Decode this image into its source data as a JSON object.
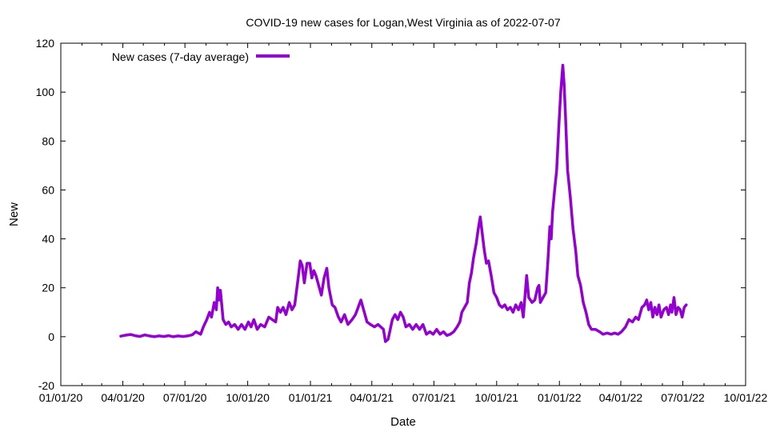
{
  "chart_data": {
    "type": "line",
    "title": "COVID-19 new cases for Logan,West Virginia as of 2022-07-07",
    "xlabel": "Date",
    "ylabel": "New",
    "x_type": "date",
    "xlim": [
      "2020-01-01",
      "2022-10-01"
    ],
    "ylim": [
      -20,
      120
    ],
    "x_ticks": [
      "2020-01-01",
      "2020-04-01",
      "2020-07-01",
      "2020-10-01",
      "2021-01-01",
      "2021-04-01",
      "2021-07-01",
      "2021-10-01",
      "2022-01-01",
      "2022-04-01",
      "2022-07-01",
      "2022-10-01"
    ],
    "x_tick_labels": [
      "01/01/20",
      "04/01/20",
      "07/01/20",
      "10/01/20",
      "01/01/21",
      "04/01/21",
      "07/01/21",
      "10/01/21",
      "01/01/22",
      "04/01/22",
      "07/01/22",
      "10/01/22"
    ],
    "y_ticks": [
      -20,
      0,
      20,
      40,
      60,
      80,
      100,
      120
    ],
    "grid": false,
    "legend_position": "top-left",
    "series": [
      {
        "name": "New cases (7-day average)",
        "color": "#9400d3",
        "points": [
          [
            "2020-03-29",
            0.2
          ],
          [
            "2020-04-05",
            0.6
          ],
          [
            "2020-04-12",
            0.9
          ],
          [
            "2020-04-19",
            0.4
          ],
          [
            "2020-04-26",
            0.1
          ],
          [
            "2020-05-03",
            0.7
          ],
          [
            "2020-05-10",
            0.3
          ],
          [
            "2020-05-17",
            0.0
          ],
          [
            "2020-05-24",
            0.3
          ],
          [
            "2020-05-31",
            0.1
          ],
          [
            "2020-06-07",
            0.4
          ],
          [
            "2020-06-14",
            0.0
          ],
          [
            "2020-06-21",
            0.3
          ],
          [
            "2020-06-28",
            0.1
          ],
          [
            "2020-07-05",
            0.3
          ],
          [
            "2020-07-12",
            0.8
          ],
          [
            "2020-07-17",
            2.0
          ],
          [
            "2020-07-24",
            1.0
          ],
          [
            "2020-07-28",
            4.0
          ],
          [
            "2020-08-02",
            7.0
          ],
          [
            "2020-08-06",
            10.0
          ],
          [
            "2020-08-09",
            8.0
          ],
          [
            "2020-08-13",
            14.0
          ],
          [
            "2020-08-16",
            11.0
          ],
          [
            "2020-08-18",
            20.0
          ],
          [
            "2020-08-20",
            15.0
          ],
          [
            "2020-08-22",
            19.0
          ],
          [
            "2020-08-26",
            7.0
          ],
          [
            "2020-08-30",
            5.0
          ],
          [
            "2020-09-03",
            6.0
          ],
          [
            "2020-09-07",
            4.0
          ],
          [
            "2020-09-12",
            5.0
          ],
          [
            "2020-09-17",
            3.0
          ],
          [
            "2020-09-22",
            5.0
          ],
          [
            "2020-09-27",
            3.0
          ],
          [
            "2020-10-02",
            6.0
          ],
          [
            "2020-10-06",
            4.0
          ],
          [
            "2020-10-10",
            7.0
          ],
          [
            "2020-10-15",
            3.0
          ],
          [
            "2020-10-20",
            5.0
          ],
          [
            "2020-10-26",
            4.0
          ],
          [
            "2020-11-01",
            8.0
          ],
          [
            "2020-11-06",
            7.0
          ],
          [
            "2020-11-11",
            6.0
          ],
          [
            "2020-11-14",
            12.0
          ],
          [
            "2020-11-18",
            10.0
          ],
          [
            "2020-11-22",
            12.0
          ],
          [
            "2020-11-26",
            9.0
          ],
          [
            "2020-12-01",
            14.0
          ],
          [
            "2020-12-05",
            11.0
          ],
          [
            "2020-12-09",
            13.0
          ],
          [
            "2020-12-14",
            24.0
          ],
          [
            "2020-12-17",
            31.0
          ],
          [
            "2020-12-20",
            29.0
          ],
          [
            "2020-12-23",
            22.0
          ],
          [
            "2020-12-27",
            30.0
          ],
          [
            "2020-12-31",
            30.0
          ],
          [
            "2021-01-03",
            24.0
          ],
          [
            "2021-01-06",
            27.0
          ],
          [
            "2021-01-09",
            25.0
          ],
          [
            "2021-01-13",
            21.0
          ],
          [
            "2021-01-17",
            17.0
          ],
          [
            "2021-01-21",
            24.0
          ],
          [
            "2021-01-25",
            28.0
          ],
          [
            "2021-01-28",
            20.0
          ],
          [
            "2021-02-02",
            13.0
          ],
          [
            "2021-02-06",
            12.0
          ],
          [
            "2021-02-11",
            8.0
          ],
          [
            "2021-02-15",
            6.0
          ],
          [
            "2021-02-20",
            9.0
          ],
          [
            "2021-02-25",
            5.0
          ],
          [
            "2021-03-03",
            7.0
          ],
          [
            "2021-03-08",
            9.0
          ],
          [
            "2021-03-12",
            12.0
          ],
          [
            "2021-03-16",
            15.0
          ],
          [
            "2021-03-20",
            11.0
          ],
          [
            "2021-03-25",
            6.0
          ],
          [
            "2021-03-30",
            5.0
          ],
          [
            "2021-04-05",
            4.0
          ],
          [
            "2021-04-10",
            5.0
          ],
          [
            "2021-04-14",
            4.0
          ],
          [
            "2021-04-18",
            3.0
          ],
          [
            "2021-04-21",
            -2.0
          ],
          [
            "2021-04-25",
            -1.0
          ],
          [
            "2021-04-28",
            3.0
          ],
          [
            "2021-05-01",
            7.0
          ],
          [
            "2021-05-05",
            9.0
          ],
          [
            "2021-05-09",
            7.0
          ],
          [
            "2021-05-13",
            10.0
          ],
          [
            "2021-05-17",
            8.0
          ],
          [
            "2021-05-21",
            4.0
          ],
          [
            "2021-05-26",
            5.0
          ],
          [
            "2021-05-31",
            3.0
          ],
          [
            "2021-06-05",
            5.0
          ],
          [
            "2021-06-10",
            3.0
          ],
          [
            "2021-06-15",
            5.0
          ],
          [
            "2021-06-20",
            1.0
          ],
          [
            "2021-06-25",
            2.0
          ],
          [
            "2021-06-30",
            1.0
          ],
          [
            "2021-07-05",
            3.0
          ],
          [
            "2021-07-10",
            1.0
          ],
          [
            "2021-07-15",
            2.0
          ],
          [
            "2021-07-20",
            0.5
          ],
          [
            "2021-07-25",
            1.0
          ],
          [
            "2021-07-30",
            2.0
          ],
          [
            "2021-08-04",
            4.0
          ],
          [
            "2021-08-08",
            6.0
          ],
          [
            "2021-08-11",
            10.0
          ],
          [
            "2021-08-15",
            12.0
          ],
          [
            "2021-08-19",
            14.0
          ],
          [
            "2021-08-22",
            22.0
          ],
          [
            "2021-08-25",
            26.0
          ],
          [
            "2021-08-28",
            32.0
          ],
          [
            "2021-09-01",
            38.0
          ],
          [
            "2021-09-04",
            44.0
          ],
          [
            "2021-09-07",
            49.0
          ],
          [
            "2021-09-10",
            42.0
          ],
          [
            "2021-09-13",
            35.0
          ],
          [
            "2021-09-16",
            30.0
          ],
          [
            "2021-09-19",
            31.0
          ],
          [
            "2021-09-23",
            25.0
          ],
          [
            "2021-09-27",
            18.0
          ],
          [
            "2021-10-01",
            16.0
          ],
          [
            "2021-10-05",
            13.0
          ],
          [
            "2021-10-09",
            12.0
          ],
          [
            "2021-10-13",
            13.0
          ],
          [
            "2021-10-17",
            11.0
          ],
          [
            "2021-10-21",
            12.0
          ],
          [
            "2021-10-25",
            10.0
          ],
          [
            "2021-10-29",
            13.0
          ],
          [
            "2021-11-02",
            11.0
          ],
          [
            "2021-11-06",
            14.0
          ],
          [
            "2021-11-09",
            8.0
          ],
          [
            "2021-11-12",
            18.0
          ],
          [
            "2021-11-14",
            25.0
          ],
          [
            "2021-11-17",
            16.0
          ],
          [
            "2021-11-22",
            14.0
          ],
          [
            "2021-11-26",
            15.0
          ],
          [
            "2021-11-30",
            20.0
          ],
          [
            "2021-12-02",
            21.0
          ],
          [
            "2021-12-04",
            14.0
          ],
          [
            "2021-12-08",
            16.0
          ],
          [
            "2021-12-12",
            18.0
          ],
          [
            "2021-12-15",
            30.0
          ],
          [
            "2021-12-18",
            45.0
          ],
          [
            "2021-12-20",
            40.0
          ],
          [
            "2021-12-22",
            51.0
          ],
          [
            "2021-12-25",
            60.0
          ],
          [
            "2021-12-28",
            68.0
          ],
          [
            "2021-12-31",
            85.0
          ],
          [
            "2022-01-03",
            100.0
          ],
          [
            "2022-01-06",
            111.0
          ],
          [
            "2022-01-08",
            103.0
          ],
          [
            "2022-01-10",
            90.0
          ],
          [
            "2022-01-13",
            68.0
          ],
          [
            "2022-01-17",
            57.0
          ],
          [
            "2022-01-21",
            44.0
          ],
          [
            "2022-01-25",
            35.0
          ],
          [
            "2022-01-28",
            25.0
          ],
          [
            "2022-02-01",
            21.0
          ],
          [
            "2022-02-05",
            14.0
          ],
          [
            "2022-02-09",
            10.0
          ],
          [
            "2022-02-13",
            5.0
          ],
          [
            "2022-02-17",
            3.0
          ],
          [
            "2022-02-23",
            3.0
          ],
          [
            "2022-03-01",
            2.0
          ],
          [
            "2022-03-06",
            1.0
          ],
          [
            "2022-03-12",
            1.5
          ],
          [
            "2022-03-18",
            1.0
          ],
          [
            "2022-03-23",
            1.5
          ],
          [
            "2022-03-28",
            1.0
          ],
          [
            "2022-04-02",
            2.0
          ],
          [
            "2022-04-08",
            4.0
          ],
          [
            "2022-04-13",
            7.0
          ],
          [
            "2022-04-18",
            6.0
          ],
          [
            "2022-04-23",
            8.0
          ],
          [
            "2022-04-27",
            7.0
          ],
          [
            "2022-05-02",
            12.0
          ],
          [
            "2022-05-06",
            13.0
          ],
          [
            "2022-05-09",
            15.0
          ],
          [
            "2022-05-12",
            11.0
          ],
          [
            "2022-05-15",
            14.0
          ],
          [
            "2022-05-18",
            8.0
          ],
          [
            "2022-05-21",
            12.0
          ],
          [
            "2022-05-24",
            9.0
          ],
          [
            "2022-05-27",
            13.0
          ],
          [
            "2022-05-30",
            8.0
          ],
          [
            "2022-06-03",
            11.0
          ],
          [
            "2022-06-07",
            12.0
          ],
          [
            "2022-06-10",
            9.0
          ],
          [
            "2022-06-13",
            13.0
          ],
          [
            "2022-06-15",
            10.0
          ],
          [
            "2022-06-18",
            16.0
          ],
          [
            "2022-06-21",
            9.0
          ],
          [
            "2022-06-24",
            12.0
          ],
          [
            "2022-06-27",
            11.0
          ],
          [
            "2022-06-30",
            8.0
          ],
          [
            "2022-07-03",
            12.0
          ],
          [
            "2022-07-06",
            13.0
          ]
        ]
      }
    ]
  }
}
